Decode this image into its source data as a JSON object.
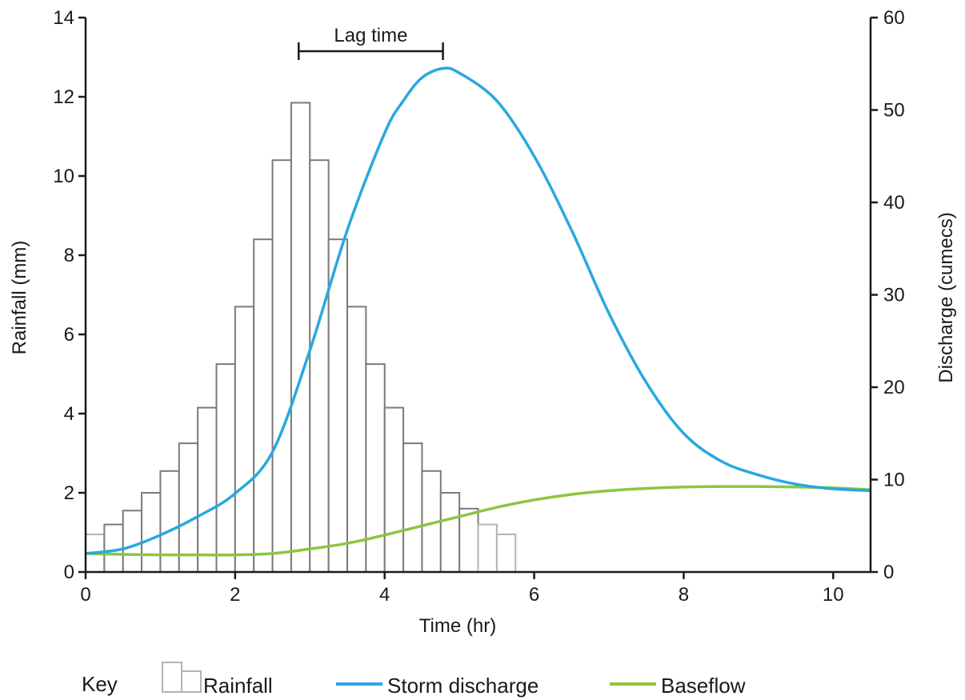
{
  "chart_data": {
    "type": "bar",
    "xlabel": "Time (hr)",
    "ylabel_left": "Rainfall (mm)",
    "ylabel_right": "Discharge (cumecs)",
    "xlim": [
      0,
      10.5
    ],
    "xticks": [
      0,
      2,
      4,
      6,
      8,
      10
    ],
    "ylim_left": [
      0,
      14
    ],
    "yticks_left": [
      0,
      2,
      4,
      6,
      8,
      10,
      12,
      14
    ],
    "ylim_right": [
      0,
      60
    ],
    "yticks_right": [
      0,
      10,
      20,
      30,
      40,
      50,
      60
    ],
    "grid": false,
    "annotation": {
      "label": "Lag time",
      "from_x": 2.85,
      "to_x": 4.78
    },
    "rainfall": {
      "name": "Rainfall",
      "bin_width_hr": 0.25,
      "x_start": [
        0,
        0.25,
        0.5,
        0.75,
        1.0,
        1.25,
        1.5,
        1.75,
        2.0,
        2.25,
        2.5,
        2.75,
        3.0,
        3.25,
        3.5,
        3.75,
        4.0,
        4.25,
        4.5,
        4.75,
        5.0,
        5.25,
        5.5
      ],
      "values": [
        0.95,
        1.2,
        1.55,
        2.0,
        2.55,
        3.25,
        4.15,
        5.25,
        6.7,
        8.4,
        10.4,
        11.85,
        10.4,
        8.4,
        6.7,
        5.25,
        4.15,
        3.25,
        2.55,
        2.0,
        1.6,
        1.2,
        0.95
      ],
      "light": [
        true,
        false,
        false,
        false,
        false,
        false,
        false,
        false,
        false,
        false,
        false,
        false,
        false,
        false,
        false,
        false,
        false,
        false,
        false,
        false,
        false,
        true,
        true
      ]
    },
    "series": [
      {
        "name": "Storm discharge",
        "color": "#29a8df",
        "x": [
          0,
          0.5,
          1.0,
          1.5,
          2.0,
          2.5,
          3.0,
          3.5,
          4.0,
          4.25,
          4.5,
          4.78,
          5.0,
          5.5,
          6.0,
          6.5,
          7.0,
          7.5,
          8.0,
          8.5,
          9.0,
          9.5,
          10.0,
          10.5
        ],
        "values": [
          2.0,
          2.5,
          4.0,
          6.0,
          8.5,
          13.0,
          24.0,
          37.0,
          47.5,
          51.0,
          53.5,
          54.5,
          54.0,
          51.0,
          45.0,
          37.0,
          28.0,
          20.5,
          15.0,
          12.0,
          10.5,
          9.5,
          9.0,
          8.8
        ]
      },
      {
        "name": "Baseflow",
        "color": "#8cc63f",
        "x": [
          0,
          0.5,
          1.0,
          1.5,
          2.0,
          2.5,
          3.0,
          3.5,
          4.0,
          4.5,
          5.0,
          5.5,
          6.0,
          6.5,
          7.0,
          7.5,
          8.0,
          8.5,
          9.0,
          9.5,
          10.0,
          10.5
        ],
        "values": [
          2.0,
          1.9,
          1.85,
          1.85,
          1.85,
          2.0,
          2.5,
          3.1,
          4.0,
          5.0,
          6.0,
          7.0,
          7.8,
          8.4,
          8.8,
          9.05,
          9.2,
          9.25,
          9.25,
          9.2,
          9.1,
          8.9
        ]
      }
    ],
    "legend": {
      "position": "bottom",
      "title": "Key",
      "items": [
        "Rainfall",
        "Storm discharge",
        "Baseflow"
      ]
    }
  },
  "colors": {
    "axis": "#1a1a1a",
    "bar_stroke_dark": "#7a7a7a",
    "bar_stroke_light": "#b3b3b3"
  }
}
